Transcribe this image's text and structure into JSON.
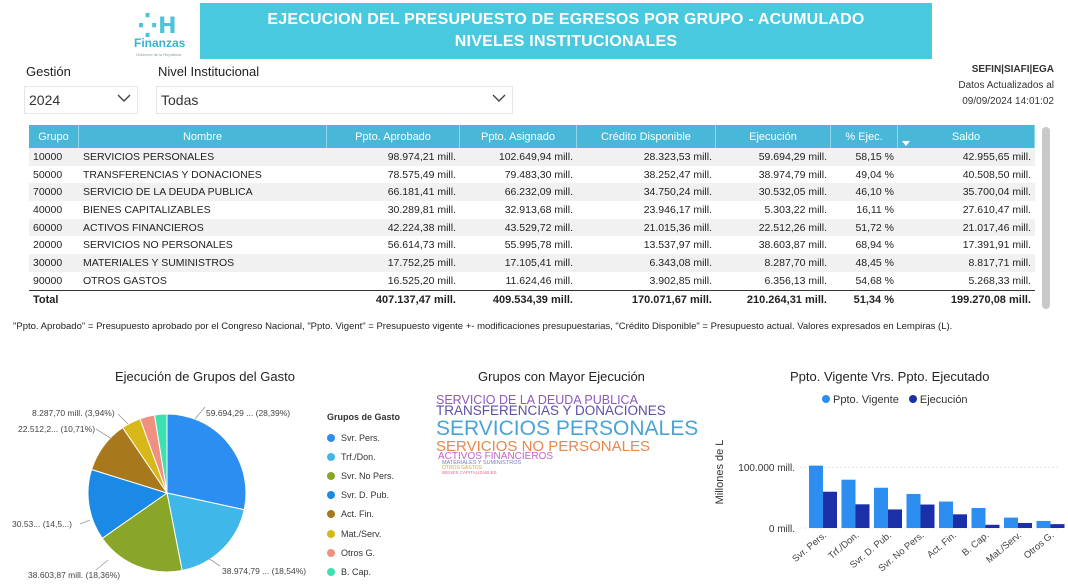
{
  "logo": {
    "mark": "⁛H",
    "name": "Finanzas",
    "tagline": "Gobierno de la República"
  },
  "banner": {
    "line1": "EJECUCION DEL PRESUPUESTO DE EGRESOS POR GRUPO  - ACUMULADO",
    "line2": "NIVELES INSTITUCIONALES"
  },
  "filters": {
    "gestion_label": "Gestión",
    "gestion_value": "2024",
    "nivel_label": "Nivel Institucional",
    "nivel_value": "Todas"
  },
  "source": {
    "system": "SEFIN|SIAFI|EGA",
    "updated_label": "Datos Actualizados al",
    "updated_value": "09/09/2024 14:01:02"
  },
  "table": {
    "headers": [
      "Grupo",
      "Nombre",
      "Ppto. Aprobado",
      "Ppto. Asignado",
      "Crédito Disponible",
      "Ejecución",
      "% Ejec.",
      "Saldo"
    ],
    "rows": [
      [
        "10000",
        "SERVICIOS PERSONALES",
        "98.974,21 mill.",
        "102.649,94 mill.",
        "28.323,53 mill.",
        "59.694,29 mill.",
        "58,15 %",
        "42.955,65 mill."
      ],
      [
        "50000",
        "TRANSFERENCIAS Y DONACIONES",
        "78.575,49 mill.",
        "79.483,30 mill.",
        "38.252,47 mill.",
        "38.974,79 mill.",
        "49,04 %",
        "40.508,50 mill."
      ],
      [
        "70000",
        "SERVICIO DE LA DEUDA PUBLICA",
        "66.181,41 mill.",
        "66.232,09 mill.",
        "34.750,24 mill.",
        "30.532,05 mill.",
        "46,10 %",
        "35.700,04 mill."
      ],
      [
        "40000",
        "BIENES CAPITALIZABLES",
        "30.289,81 mill.",
        "32.913,68 mill.",
        "23.946,17 mill.",
        "5.303,22 mill.",
        "16,11 %",
        "27.610,47 mill."
      ],
      [
        "60000",
        "ACTIVOS FINANCIEROS",
        "42.224,38 mill.",
        "43.529,72 mill.",
        "21.015,36 mill.",
        "22.512,26 mill.",
        "51,72 %",
        "21.017,46 mill."
      ],
      [
        "20000",
        "SERVICIOS NO PERSONALES",
        "56.614,73 mill.",
        "55.995,78 mill.",
        "13.537,97 mill.",
        "38.603,87 mill.",
        "68,94 %",
        "17.391,91 mill."
      ],
      [
        "30000",
        "MATERIALES Y SUMINISTROS",
        "17.752,25 mill.",
        "17.105,41 mill.",
        "6.343,08 mill.",
        "8.287,70 mill.",
        "48,45 %",
        "8.817,71 mill."
      ],
      [
        "90000",
        "OTROS GASTOS",
        "16.525,20 mill.",
        "11.624,46 mill.",
        "3.902,85 mill.",
        "6.356,13 mill.",
        "54,68 %",
        "5.268,33 mill."
      ]
    ],
    "total": [
      "Total",
      "",
      "407.137,47 mill.",
      "409.534,39 mill.",
      "170.071,67 mill.",
      "210.264,31 mill.",
      "51,34 %",
      "199.270,08 mill."
    ]
  },
  "footnote": "\"Ppto. Aprobado\" = Presupuesto aprobado por el Congreso Nacional, \"Ppto. Vigent\" = Presupuesto vigente +- modificaciones presupuestarias, \"Crédito Disponible\" = Presupuesto actual. Valores expresados en Lempiras (L).",
  "pie": {
    "title": "Ejecución de Grupos del Gasto",
    "legend_title": "Grupos de Gasto",
    "labels": {
      "l1": "59.694,29 ... (28,39%)",
      "l2": "38.974,79 ... (18,54%)",
      "l3": "38.603,87 mill. (18,36%)",
      "l4": "30.53... (14,5...)",
      "l5": "22.512,2... (10,71%)",
      "l6": "8.287,70 mill. (3,94%)"
    }
  },
  "wordcloud": {
    "title": "Grupos con Mayor Ejecución",
    "words": [
      {
        "text": "SERVICIO DE LA DEUDA PUBLICA",
        "color": "#8e5ab8"
      },
      {
        "text": "TRANSFERENCIAS Y DONACIONES",
        "color": "#5b4fa8"
      },
      {
        "text": "SERVICIOS PERSONALES",
        "color": "#4aa3d8"
      },
      {
        "text": "SERVICIOS NO PERSONALES",
        "color": "#e8884a"
      },
      {
        "text": "ACTIVOS FINANCIEROS",
        "color": "#c263c9"
      },
      {
        "text": "MATERIALES Y SUMINISTROS",
        "color": "#7a7ac8"
      },
      {
        "text": "OTROS GASTOS",
        "color": "#d9a441"
      },
      {
        "text": "BIENES CAPITALIZABLES",
        "color": "#e86a8a"
      }
    ]
  },
  "colors": {
    "banner": "#49c9de",
    "header": "#49b7d8",
    "vigente": "#2b8ef0",
    "ejecucion": "#1a2fa8"
  },
  "chart_data": [
    {
      "type": "pie",
      "title": "Ejecución de Grupos del Gasto",
      "legend_title": "Grupos de Gasto",
      "categories": [
        "Svr. Pers.",
        "Trf./Don.",
        "Svr. No Pers.",
        "Svr. D. Pub.",
        "Act. Fin.",
        "Mat./Serv.",
        "Otros G.",
        "B. Cap."
      ],
      "values": [
        59694.29,
        38974.79,
        38603.87,
        30532.05,
        22512.26,
        8287.7,
        6356.13,
        5303.22
      ],
      "colors": [
        "#2c8ef0",
        "#3fb7e8",
        "#8aa628",
        "#1a8ae6",
        "#a8781c",
        "#d8b818",
        "#f09080",
        "#3ee0b0"
      ]
    },
    {
      "type": "bar",
      "title": "Ppto. Vigente Vrs. Ppto. Ejecutado",
      "ylabel": "Millones de L",
      "legend": "top",
      "categories": [
        "Svr. Pers.",
        "Trf./Don.",
        "Svr. D. Pub.",
        "Svr. No Pers.",
        "Act. Fin.",
        "B. Cap.",
        "Mat./Serv.",
        "Otros G."
      ],
      "series": [
        {
          "name": "Ppto. Vigente",
          "values": [
            102649.94,
            79483.3,
            66232.09,
            55995.78,
            43529.72,
            32913.68,
            17105.41,
            11624.46
          ]
        },
        {
          "name": "Ejecución",
          "values": [
            59694.29,
            38974.79,
            30532.05,
            38603.87,
            22512.26,
            5303.22,
            8287.7,
            6356.13
          ]
        }
      ],
      "yticks": [
        "0 mill.",
        "100.000 mill."
      ],
      "ylim": [
        0,
        120000
      ]
    }
  ]
}
